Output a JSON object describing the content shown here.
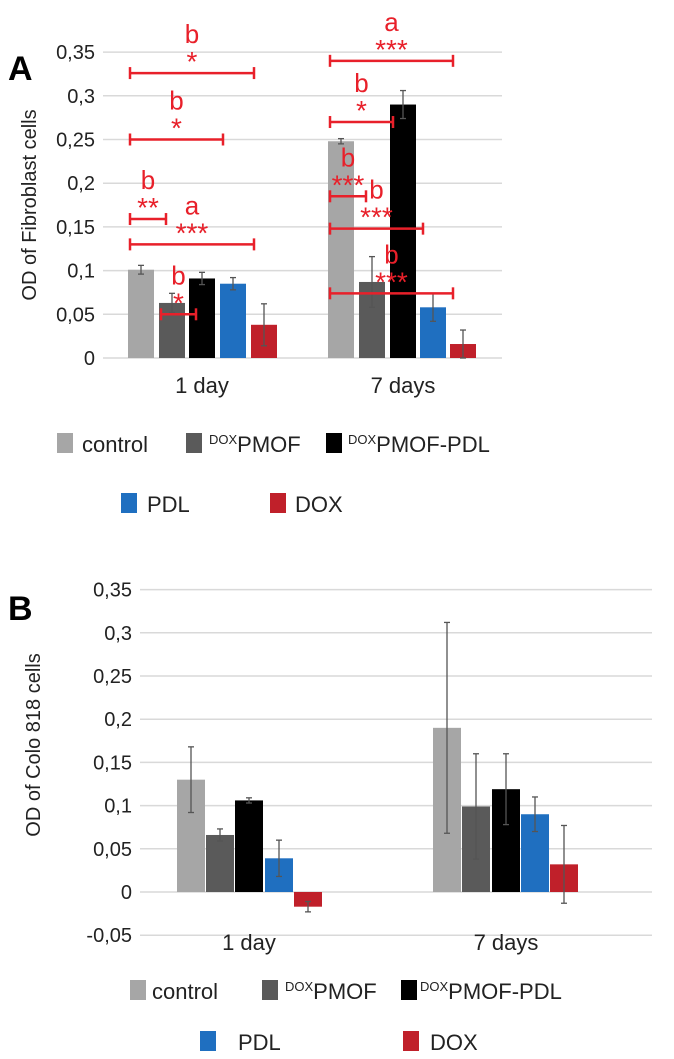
{
  "series_colors": {
    "control": "#a6a6a6",
    "DOXPMOF": "#5a5a5a",
    "DOXPMOF-PDL": "#000000",
    "PDL": "#1f6fc0",
    "DOX": "#c0202a"
  },
  "annotation_color": "#e8202a",
  "legend": [
    {
      "key": "control",
      "sup": "",
      "label": "control"
    },
    {
      "key": "DOXPMOF",
      "sup": "DOX",
      "label": "PMOF"
    },
    {
      "key": "DOXPMOF-PDL",
      "sup": "DOX",
      "label": "PMOF-PDL"
    },
    {
      "key": "PDL",
      "sup": "",
      "label": "PDL"
    },
    {
      "key": "DOX",
      "sup": "",
      "label": "DOX"
    }
  ],
  "chart_data": [
    {
      "panel_label": "A",
      "type": "bar",
      "ylabel": "OD of Fibroblast cells",
      "ylim": [
        0,
        0.35
      ],
      "yticks": [
        "0",
        "0,05",
        "0,1",
        "0,15",
        "0,2",
        "0,25",
        "0,3",
        "0,35"
      ],
      "grid": true,
      "legend_placement": "bottom",
      "categories": [
        "1 day",
        "7 days"
      ],
      "series": [
        {
          "name": "control",
          "values": [
            0.101,
            0.248
          ],
          "errors": [
            0.005,
            0.003
          ]
        },
        {
          "name": "DOXPMOF",
          "values": [
            0.063,
            0.087
          ],
          "errors": [
            0.011,
            0.029
          ]
        },
        {
          "name": "DOXPMOF-PDL",
          "values": [
            0.091,
            0.29
          ],
          "errors": [
            0.007,
            0.016
          ]
        },
        {
          "name": "PDL",
          "values": [
            0.085,
            0.058
          ],
          "errors": [
            0.007,
            0.016
          ]
        },
        {
          "name": "DOX",
          "values": [
            0.038,
            0.016
          ],
          "errors": [
            0.024,
            0.016
          ]
        }
      ],
      "annotations": [
        {
          "category": 0,
          "from": 0,
          "to": 4,
          "y": 0.326,
          "stars": "*",
          "letter": "b"
        },
        {
          "category": 0,
          "from": 0,
          "to": 3,
          "y": 0.25,
          "stars": "*",
          "letter": "b"
        },
        {
          "category": 0,
          "from": 0,
          "to": 1,
          "y": 0.159,
          "stars": "**",
          "letter": "b"
        },
        {
          "category": 0,
          "from": 0,
          "to": 4,
          "y": 0.13,
          "stars": "***",
          "letter": "a"
        },
        {
          "category": 0,
          "from": 1,
          "to": 2,
          "y": 0.05,
          "stars": "*",
          "letter": "b"
        },
        {
          "category": 1,
          "from": 0,
          "to": 4,
          "y": 0.34,
          "stars": "***",
          "letter": "a"
        },
        {
          "category": 1,
          "from": 0,
          "to": 2,
          "y": 0.27,
          "stars": "*",
          "letter": "b"
        },
        {
          "category": 1,
          "from": 0,
          "to": 1,
          "y": 0.185,
          "stars": "***",
          "letter": "b"
        },
        {
          "category": 1,
          "from": 0,
          "to": 3,
          "y": 0.148,
          "stars": "***",
          "letter": "b"
        },
        {
          "category": 1,
          "from": 0,
          "to": 4,
          "y": 0.074,
          "stars": "***",
          "letter": "b"
        }
      ]
    },
    {
      "panel_label": "B",
      "type": "bar",
      "ylabel": "OD of Colo 818 cells",
      "ylim": [
        -0.05,
        0.35
      ],
      "yticks": [
        "-0,05",
        "0",
        "0,05",
        "0,1",
        "0,15",
        "0,2",
        "0,25",
        "0,3",
        "0,35"
      ],
      "grid": true,
      "legend_placement": "bottom",
      "categories": [
        "1 day",
        "7 days"
      ],
      "series": [
        {
          "name": "control",
          "values": [
            0.13,
            0.19
          ],
          "errors": [
            0.038,
            0.122
          ]
        },
        {
          "name": "DOXPMOF",
          "values": [
            0.066,
            0.099
          ],
          "errors": [
            0.007,
            0.061
          ]
        },
        {
          "name": "DOXPMOF-PDL",
          "values": [
            0.106,
            0.119
          ],
          "errors": [
            0.003,
            0.041
          ]
        },
        {
          "name": "PDL",
          "values": [
            0.039,
            0.09
          ],
          "errors": [
            0.021,
            0.02
          ]
        },
        {
          "name": "DOX",
          "values": [
            -0.017,
            0.032
          ],
          "errors": [
            0.006,
            0.045
          ]
        }
      ]
    }
  ]
}
